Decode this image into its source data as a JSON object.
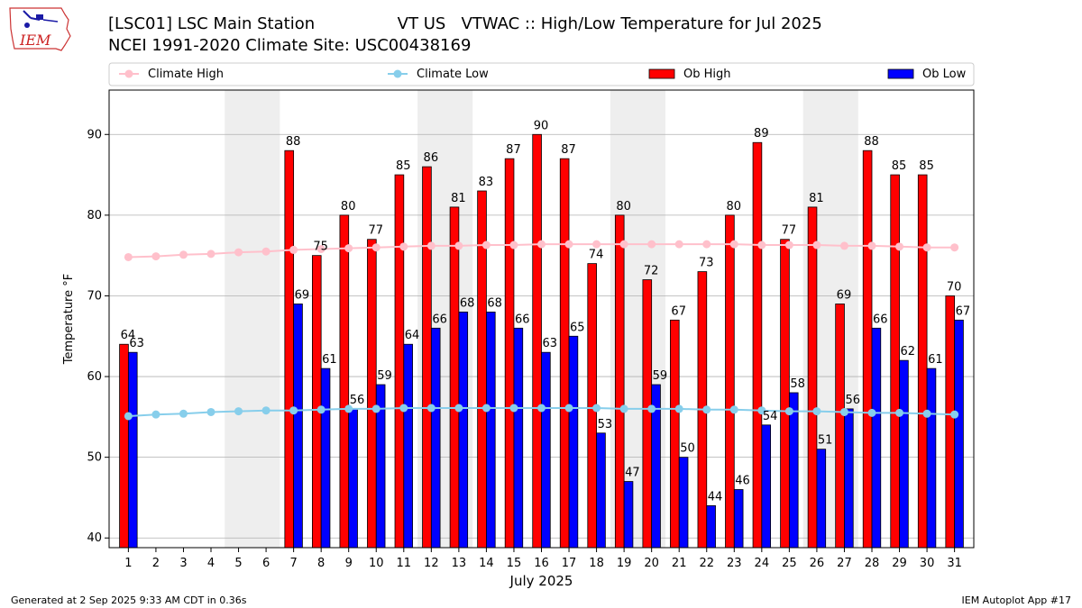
{
  "header": {
    "title_line1": "[LSC01] LSC Main Station                VT US   VTWAC :: High/Low Temperature for Jul 2025",
    "title_line2": "NCEI 1991-2020 Climate Site: USC00438169",
    "logo_text": "IEM"
  },
  "footer": {
    "left": "Generated at 2 Sep 2025 9:33 AM CDT in 0.36s",
    "right": "IEM Autoplot App #17"
  },
  "colors": {
    "climate_high": "#ffc0cb",
    "climate_low": "#87ceeb",
    "ob_high": "#ff0000",
    "ob_low": "#0000ff",
    "weekend_shade": "#eeeeee",
    "grid": "#b0b0b0"
  },
  "chart_data": {
    "type": "bar",
    "xlabel": "July 2025",
    "ylabel": "Temperature °F",
    "ylim": [
      38.8,
      95.5
    ],
    "yticks": [
      40,
      50,
      60,
      70,
      80,
      90
    ],
    "grid": "horizontal",
    "legend_position": "top",
    "legend": [
      "Climate High",
      "Climate Low",
      "Ob High",
      "Ob Low"
    ],
    "categories": [
      "1",
      "2",
      "3",
      "4",
      "5",
      "6",
      "7",
      "8",
      "9",
      "10",
      "11",
      "12",
      "13",
      "14",
      "15",
      "16",
      "17",
      "18",
      "19",
      "20",
      "21",
      "22",
      "23",
      "24",
      "25",
      "26",
      "27",
      "28",
      "29",
      "30",
      "31"
    ],
    "weekend_days": [
      5,
      6,
      12,
      13,
      19,
      20,
      26,
      27
    ],
    "series": [
      {
        "name": "Ob High",
        "kind": "bar",
        "values": [
          64,
          null,
          null,
          null,
          null,
          null,
          88,
          75,
          80,
          77,
          85,
          86,
          81,
          83,
          87,
          90,
          87,
          74,
          80,
          72,
          67,
          73,
          80,
          89,
          77,
          81,
          69,
          88,
          85,
          85,
          70
        ]
      },
      {
        "name": "Ob Low",
        "kind": "bar",
        "values": [
          63,
          null,
          null,
          null,
          null,
          null,
          69,
          61,
          56,
          59,
          64,
          66,
          68,
          68,
          66,
          63,
          65,
          53,
          47,
          59,
          50,
          44,
          46,
          54,
          58,
          51,
          56,
          66,
          62,
          61,
          67
        ]
      },
      {
        "name": "Climate High",
        "kind": "line",
        "values": [
          74.8,
          74.9,
          75.1,
          75.2,
          75.4,
          75.5,
          75.7,
          75.8,
          75.9,
          76.0,
          76.1,
          76.2,
          76.2,
          76.3,
          76.3,
          76.4,
          76.4,
          76.4,
          76.4,
          76.4,
          76.4,
          76.4,
          76.4,
          76.3,
          76.3,
          76.3,
          76.2,
          76.2,
          76.1,
          76.0,
          76.0
        ]
      },
      {
        "name": "Climate Low",
        "kind": "line",
        "values": [
          55.1,
          55.3,
          55.4,
          55.6,
          55.7,
          55.8,
          55.8,
          55.9,
          56.0,
          56.0,
          56.1,
          56.1,
          56.1,
          56.1,
          56.1,
          56.1,
          56.1,
          56.1,
          56.0,
          56.0,
          56.0,
          55.9,
          55.9,
          55.8,
          55.7,
          55.7,
          55.6,
          55.5,
          55.5,
          55.4,
          55.3
        ]
      }
    ]
  }
}
